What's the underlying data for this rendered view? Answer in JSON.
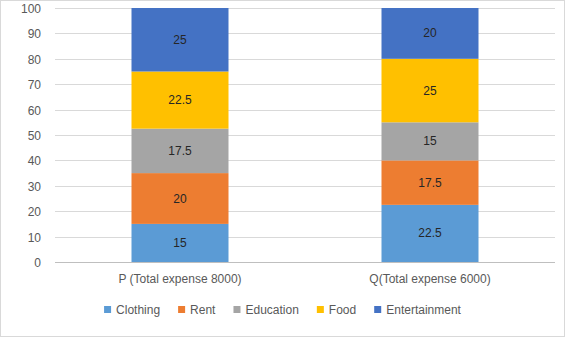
{
  "chart_data": {
    "type": "bar",
    "stacked": true,
    "data_labels": true,
    "grid": true,
    "legend": "bottom",
    "categories": [
      "P (Total expense 8000)",
      "Q(Total expense 6000)"
    ],
    "series": [
      {
        "name": "Clothing",
        "color": "#5b9bd5",
        "values": [
          15,
          22.5
        ]
      },
      {
        "name": "Rent",
        "color": "#ed7d31",
        "values": [
          20,
          17.5
        ]
      },
      {
        "name": "Education",
        "color": "#a5a5a5",
        "values": [
          17.5,
          15
        ]
      },
      {
        "name": "Food",
        "color": "#ffc000",
        "values": [
          22.5,
          25
        ]
      },
      {
        "name": "Entertainment",
        "color": "#4472c4",
        "values": [
          25,
          20
        ]
      }
    ],
    "ylim": [
      0,
      100
    ],
    "yticks": [
      0,
      10,
      20,
      30,
      40,
      50,
      60,
      70,
      80,
      90,
      100
    ]
  }
}
